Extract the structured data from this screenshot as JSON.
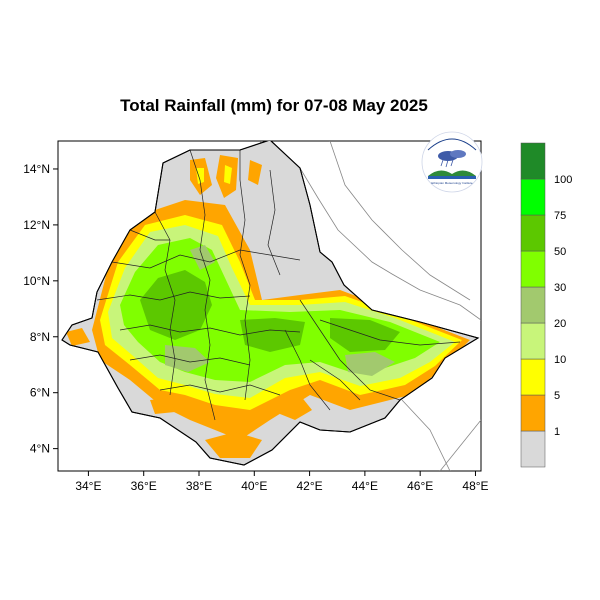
{
  "title": "Total Rainfall (mm) for 07-08 May 2025",
  "map": {
    "x_ticks": [
      {
        "value": 34,
        "label": "34°E"
      },
      {
        "value": 36,
        "label": "36°E"
      },
      {
        "value": 38,
        "label": "38°E"
      },
      {
        "value": 40,
        "label": "40°E"
      },
      {
        "value": 42,
        "label": "42°E"
      },
      {
        "value": 44,
        "label": "44°E"
      },
      {
        "value": 46,
        "label": "46°E"
      },
      {
        "value": 48,
        "label": "48°E"
      }
    ],
    "y_ticks": [
      {
        "value": 14,
        "label": "14°N"
      },
      {
        "value": 12,
        "label": "12°N"
      },
      {
        "value": 10,
        "label": "10°N"
      },
      {
        "value": 8,
        "label": "8°N"
      },
      {
        "value": 6,
        "label": "6°N"
      },
      {
        "value": 4,
        "label": "4°N"
      }
    ],
    "lon_range": [
      32.9,
      48.2
    ],
    "lat_range": [
      3.2,
      15.0
    ]
  },
  "legend": {
    "bins": [
      {
        "color": "#d9d9d9",
        "label": "1"
      },
      {
        "color": "#ffa500",
        "label": "5"
      },
      {
        "color": "#ffff00",
        "label": "10"
      },
      {
        "color": "#c8f57a",
        "label": "20"
      },
      {
        "color": "#a2c96e",
        "label": "30"
      },
      {
        "color": "#80ff00",
        "label": "50"
      },
      {
        "color": "#5cc800",
        "label": "75"
      },
      {
        "color": "#00ff00",
        "label": "100"
      },
      {
        "color": "#1f8a28",
        "label": ""
      }
    ]
  },
  "colors": {
    "no_rain": "#d9d9d9",
    "light": "#ffa500",
    "moderate": "#ffff00",
    "green_light": "#c8f57a",
    "green_mid": "#80ff00",
    "green_dark": "#5cc800",
    "grey_green": "#a2c96e"
  },
  "logo": {
    "caption": "Ethiopian Meteorology Institute"
  }
}
